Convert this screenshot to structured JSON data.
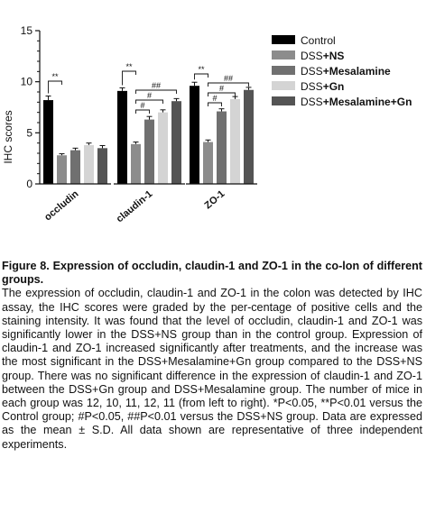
{
  "chart_data": {
    "type": "bar",
    "categories": [
      "occludin",
      "claudin-1",
      "ZO-1"
    ],
    "ylabel": "IHC scores",
    "ylim": [
      0,
      15
    ],
    "yticks": [
      "0",
      "5",
      "10",
      "15"
    ],
    "legend_position": "right",
    "series": [
      {
        "name": "Control",
        "color": "#000000",
        "values": [
          8.2,
          9.1,
          9.6
        ],
        "errors": [
          0.4,
          0.3,
          0.35
        ]
      },
      {
        "name": "DSS+NS",
        "color": "#8c8c8c",
        "values": [
          2.8,
          3.9,
          4.1
        ],
        "errors": [
          0.15,
          0.2,
          0.2
        ]
      },
      {
        "name": "DSS+Mesalamine",
        "color": "#707070",
        "values": [
          3.3,
          6.3,
          7.1
        ],
        "errors": [
          0.2,
          0.3,
          0.25
        ]
      },
      {
        "name": "DSS+Gn",
        "color": "#d4d4d4",
        "values": [
          3.8,
          7.0,
          8.3
        ],
        "errors": [
          0.2,
          0.25,
          0.25
        ]
      },
      {
        "name": "DSS+Mesalamine+Gn",
        "color": "#545454",
        "values": [
          3.5,
          8.1,
          9.2
        ],
        "errors": [
          0.25,
          0.25,
          0.25
        ]
      }
    ],
    "annotations": [
      {
        "category": 0,
        "from": 0,
        "to": 1,
        "label": "**"
      },
      {
        "category": 1,
        "from": 0,
        "to": 1,
        "label": "**"
      },
      {
        "category": 1,
        "from": 1,
        "to": 2,
        "label": "#"
      },
      {
        "category": 1,
        "from": 1,
        "to": 3,
        "label": "#"
      },
      {
        "category": 1,
        "from": 1,
        "to": 4,
        "label": "##"
      },
      {
        "category": 2,
        "from": 0,
        "to": 1,
        "label": "**"
      },
      {
        "category": 2,
        "from": 1,
        "to": 2,
        "label": "#"
      },
      {
        "category": 2,
        "from": 1,
        "to": 3,
        "label": "#"
      },
      {
        "category": 2,
        "from": 1,
        "to": 4,
        "label": "##"
      }
    ]
  },
  "legend_labels": [
    {
      "base": "Control",
      "bold": ""
    },
    {
      "base": "DSS",
      "bold": "+NS"
    },
    {
      "base": "DSS",
      "bold": "+Mesalamine"
    },
    {
      "base": "DSS",
      "bold": "+Gn"
    },
    {
      "base": "DSS",
      "bold": "+Mesalamine+Gn"
    }
  ],
  "caption": {
    "title": "Figure 8. Expression of occludin, claudin-1 and ZO-1 in the co-lon of different groups.",
    "body": "The expression of occludin, claudin-1 and ZO-1 in the colon was detected by IHC assay, the IHC scores were graded by the per-centage of positive cells and the staining intensity. It was found that the level of occludin, claudin-1 and ZO-1 was significantly lower in the DSS+NS group than in the control group. Expression of claudin-1 and ZO-1 increased significantly after treatments, and the increase was the most significant in the DSS+Mesalamine+Gn group compared to the DSS+NS group. There was no significant difference in the expression of claudin-1 and ZO-1 between the DSS+Gn group and DSS+Mesalamine group. The number of mice in each group was 12, 10, 11, 12, 11 (from left to right). *P<0.05, **P<0.01 versus the Control group; #P<0.05, ##P<0.01 versus the DSS+NS group. Data are expressed as the mean ± S.D. All data shown are representative of three independent experiments."
  }
}
